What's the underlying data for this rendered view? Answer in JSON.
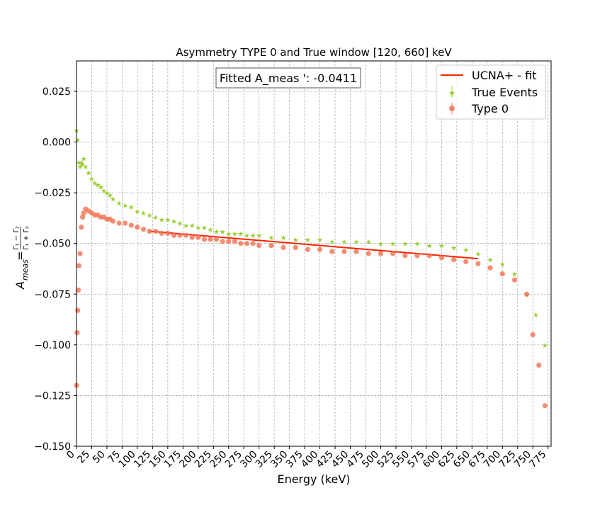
{
  "chart_data": {
    "type": "scatter",
    "title": "Asymmetry TYPE 0 and True  window [120, 660] keV",
    "xlabel": "Energy (keV)",
    "ylabel": {
      "main": "A",
      "sub": "meas",
      "eq": " = ",
      "num": "Γ₁ − Γ₂",
      "den": "Γ₁ + Γ₂"
    },
    "xlim": [
      0,
      780
    ],
    "ylim": [
      -0.15,
      0.04
    ],
    "x_ticks": [
      "0",
      "25",
      "50",
      "75",
      "100",
      "125",
      "150",
      "175",
      "200",
      "225",
      "250",
      "275",
      "300",
      "325",
      "350",
      "375",
      "400",
      "425",
      "450",
      "475",
      "500",
      "525",
      "550",
      "575",
      "600",
      "625",
      "650",
      "675",
      "700",
      "725",
      "750",
      "775"
    ],
    "y_ticks": [
      "0.025",
      "0.000",
      "−0.025",
      "−0.050",
      "−0.075",
      "−0.100",
      "−0.125",
      "−0.150"
    ],
    "grid": true,
    "legend_placement": "top-right",
    "annotation": "Fitted A_meas ': -0.0411",
    "series": [
      {
        "name": "UCNA+ - fit",
        "kind": "line",
        "color": "#ff2200",
        "x": [
          120,
          660
        ],
        "y": [
          -0.044,
          -0.0575
        ]
      },
      {
        "name": "True Events",
        "kind": "star",
        "color": "#9acd32",
        "x": [
          0,
          2,
          4,
          6,
          8,
          10,
          12,
          15,
          20,
          25,
          30,
          35,
          40,
          45,
          50,
          55,
          60,
          70,
          80,
          90,
          100,
          110,
          120,
          130,
          140,
          150,
          160,
          170,
          180,
          190,
          200,
          210,
          220,
          230,
          240,
          250,
          260,
          270,
          280,
          290,
          300,
          320,
          340,
          360,
          380,
          400,
          420,
          440,
          460,
          480,
          500,
          520,
          540,
          560,
          580,
          600,
          620,
          640,
          660,
          680,
          700,
          720,
          740,
          755,
          770
        ],
        "y": [
          0.006,
          0.001,
          -0.01,
          -0.012,
          -0.01,
          -0.011,
          -0.008,
          -0.012,
          -0.015,
          -0.018,
          -0.02,
          -0.021,
          -0.022,
          -0.024,
          -0.025,
          -0.026,
          -0.028,
          -0.03,
          -0.031,
          -0.032,
          -0.034,
          -0.035,
          -0.036,
          -0.037,
          -0.038,
          -0.038,
          -0.039,
          -0.04,
          -0.041,
          -0.041,
          -0.042,
          -0.042,
          -0.043,
          -0.044,
          -0.044,
          -0.045,
          -0.045,
          -0.045,
          -0.046,
          -0.046,
          -0.046,
          -0.047,
          -0.047,
          -0.048,
          -0.048,
          -0.048,
          -0.049,
          -0.049,
          -0.049,
          -0.049,
          -0.05,
          -0.05,
          -0.05,
          -0.05,
          -0.051,
          -0.051,
          -0.052,
          -0.053,
          -0.055,
          -0.058,
          -0.06,
          -0.065,
          -0.075,
          -0.085,
          -0.1
        ]
      },
      {
        "name": "Type 0",
        "kind": "circle",
        "color": "#f07050",
        "x": [
          0,
          1,
          2,
          3,
          4,
          6,
          8,
          10,
          12,
          15,
          20,
          25,
          30,
          35,
          40,
          45,
          50,
          55,
          60,
          70,
          80,
          90,
          100,
          110,
          120,
          130,
          140,
          150,
          160,
          170,
          180,
          190,
          200,
          210,
          220,
          230,
          240,
          250,
          260,
          270,
          280,
          290,
          300,
          320,
          340,
          360,
          380,
          400,
          420,
          440,
          460,
          480,
          500,
          520,
          540,
          560,
          580,
          600,
          620,
          640,
          660,
          680,
          700,
          720,
          740,
          750,
          760,
          770
        ],
        "y": [
          -0.12,
          -0.094,
          -0.083,
          -0.073,
          -0.061,
          -0.055,
          -0.042,
          -0.037,
          -0.035,
          -0.033,
          -0.034,
          -0.035,
          -0.036,
          -0.036,
          -0.037,
          -0.037,
          -0.038,
          -0.038,
          -0.039,
          -0.04,
          -0.04,
          -0.041,
          -0.042,
          -0.043,
          -0.044,
          -0.044,
          -0.045,
          -0.045,
          -0.046,
          -0.046,
          -0.046,
          -0.047,
          -0.047,
          -0.048,
          -0.048,
          -0.048,
          -0.049,
          -0.049,
          -0.049,
          -0.05,
          -0.05,
          -0.05,
          -0.051,
          -0.051,
          -0.052,
          -0.052,
          -0.053,
          -0.053,
          -0.054,
          -0.054,
          -0.054,
          -0.055,
          -0.055,
          -0.055,
          -0.056,
          -0.056,
          -0.056,
          -0.057,
          -0.058,
          -0.059,
          -0.06,
          -0.062,
          -0.065,
          -0.068,
          -0.075,
          -0.095,
          -0.11,
          -0.13
        ]
      }
    ]
  }
}
